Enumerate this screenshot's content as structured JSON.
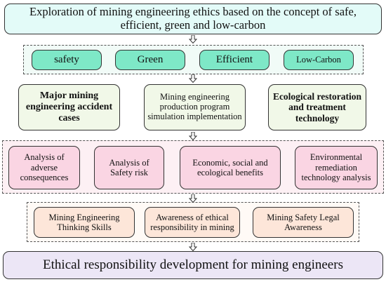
{
  "title": "Exploration of mining engineering ethics based on the concept of safe, efficient, green and low-carbon",
  "concepts": [
    "safety",
    "Green",
    "Efficient",
    "Low-Carbon"
  ],
  "topics": [
    "Major mining engineering accident cases",
    "Mining engineering production program simulation implementation",
    "Ecological restoration and treatment technology"
  ],
  "analyses": [
    "Analysis of adverse consequences",
    "Analysis of Safety risk",
    "Economic, social and ecological benefits",
    "Environmental remediation technology analysis"
  ],
  "skills": [
    "Mining Engineering Thinking Skills",
    "Awareness of ethical responsibility in mining",
    "Mining Safety Legal Awareness"
  ],
  "outcome": "Ethical responsibility development for mining engineers",
  "colors": {
    "title_fill": "#e3fbf8",
    "concept_fill": "#7ee8c7",
    "concept_bg": "#f1fbf7",
    "topic_fill": "#f1f8e8",
    "analysis_fill": "#fad5e3",
    "analysis_bg": "#fdf0f4",
    "skill_fill": "#fde6d9",
    "outcome_fill": "#ece6f6"
  }
}
